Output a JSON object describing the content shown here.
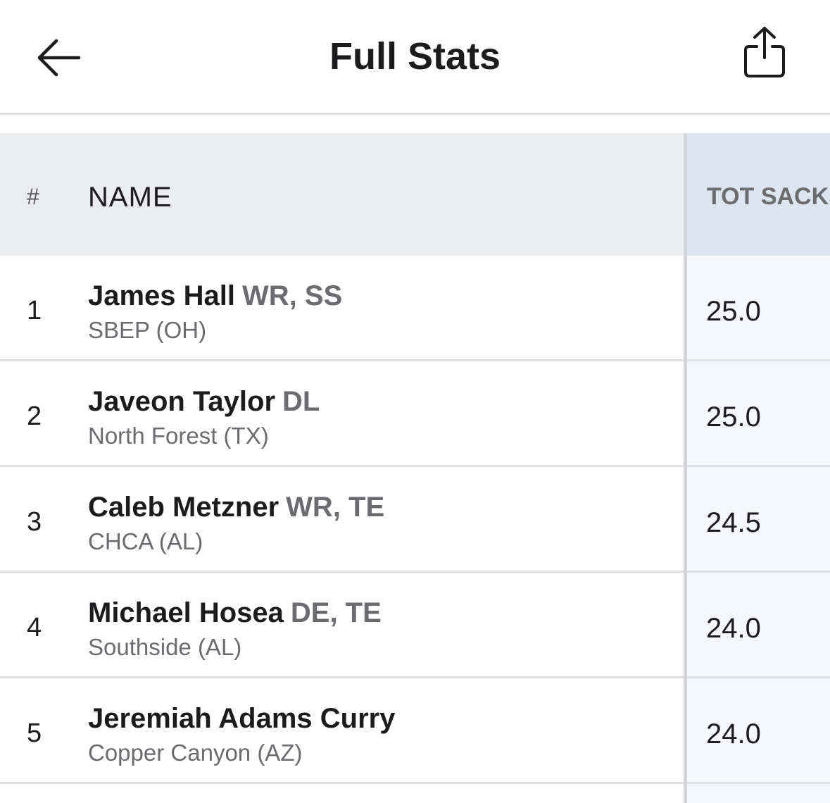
{
  "header": {
    "title": "Full Stats",
    "back_icon": "arrow-left-icon",
    "share_icon": "share-icon"
  },
  "table": {
    "columns": {
      "rank": "#",
      "name": "NAME",
      "stat": "TOT SACKS"
    },
    "rows": [
      {
        "rank": "1",
        "name": "James Hall",
        "positions": "WR, SS",
        "school": "SBEP (OH)",
        "stat": "25.0"
      },
      {
        "rank": "2",
        "name": "Javeon Taylor",
        "positions": "DL",
        "school": "North Forest (TX)",
        "stat": "25.0"
      },
      {
        "rank": "3",
        "name": "Caleb Metzner",
        "positions": "WR, TE",
        "school": "CHCA (AL)",
        "stat": "24.5"
      },
      {
        "rank": "4",
        "name": "Michael Hosea",
        "positions": "DE, TE",
        "school": "Southside (AL)",
        "stat": "24.0"
      },
      {
        "rank": "5",
        "name": "Jeremiah Adams Curry",
        "positions": "",
        "school": "Copper Canyon (AZ)",
        "stat": "24.0"
      }
    ]
  },
  "colors": {
    "header_bg": "#ebecef",
    "stat_header_bg": "#dfe4f1",
    "stat_col_bg": "#f5f7fc",
    "text_primary": "#1c1c1e",
    "text_secondary": "#6b6b70"
  }
}
